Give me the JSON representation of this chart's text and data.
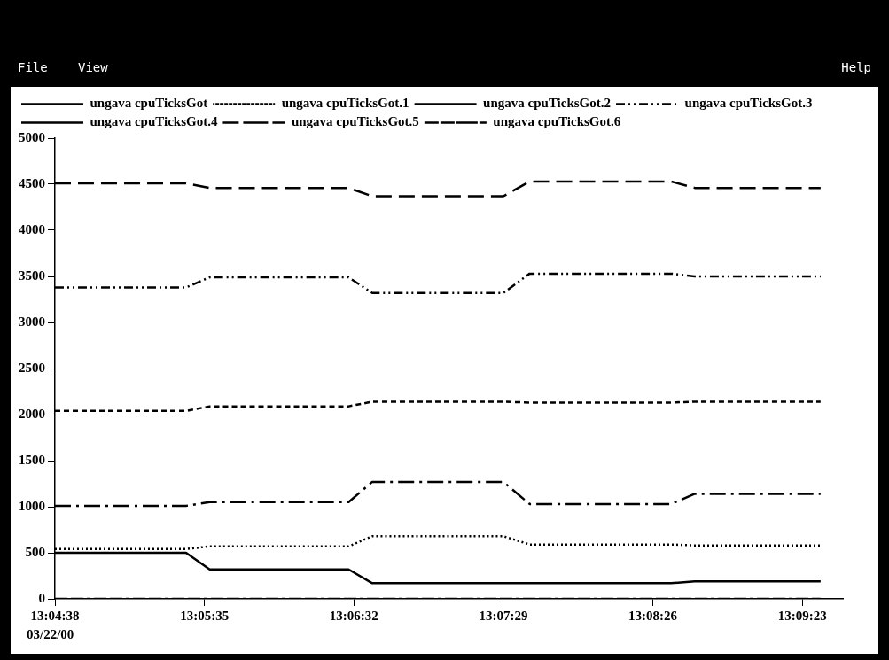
{
  "chart_data": {
    "type": "line",
    "x": [
      13.077222,
      13.091111,
      13.093611,
      13.108333,
      13.110833,
      13.124722,
      13.1275,
      13.1425,
      13.145,
      13.158333
    ],
    "series": [
      {
        "name": "ungava cpuTicksGot",
        "color": "#000000",
        "line_style": "solid",
        "values": [
          500,
          500,
          320,
          320,
          170,
          170,
          170,
          170,
          190,
          190
        ]
      },
      {
        "name": "ungava cpuTicksGot.1",
        "color": "#000000",
        "line_style": "dotted",
        "values": [
          540,
          540,
          570,
          570,
          680,
          680,
          590,
          590,
          580,
          580
        ]
      },
      {
        "name": "ungava cpuTicksGot.2",
        "color": "#000000",
        "line_style": "dashed",
        "values": [
          2040,
          2040,
          2090,
          2090,
          2140,
          2140,
          2130,
          2130,
          2140,
          2140
        ]
      },
      {
        "name": "ungava cpuTicksGot.3",
        "color": "#000000",
        "line_style": "dashdotdot",
        "values": [
          3380,
          3380,
          3490,
          3490,
          3320,
          3320,
          3530,
          3530,
          3500,
          3500
        ]
      },
      {
        "name": "ungava cpuTicksGot.4",
        "color": "#000000",
        "line_style": "longdash",
        "values": [
          4510,
          4510,
          4460,
          4460,
          4370,
          4370,
          4530,
          4530,
          4460,
          4460
        ]
      },
      {
        "name": "ungava cpuTicksGot.5",
        "color": "#000000",
        "line_style": "longdashdot",
        "values": [
          1010,
          1010,
          1050,
          1050,
          1270,
          1270,
          1030,
          1030,
          1140,
          1140
        ]
      },
      {
        "name": "ungava cpuTicksGot.6",
        "color": "#000000",
        "line_style": "dashdash",
        "values": [
          0,
          0,
          0,
          0,
          0,
          0,
          0,
          0,
          0,
          0
        ]
      }
    ],
    "xlim": [
      13.077222,
      13.160694
    ],
    "xticks": [
      {
        "value": 13.077222,
        "label": "13:04:38"
      },
      {
        "value": 13.093056,
        "label": "13:05:35"
      },
      {
        "value": 13.108889,
        "label": "13:06:32"
      },
      {
        "value": 13.124722,
        "label": "13:07:29"
      },
      {
        "value": 13.140556,
        "label": "13:08:26"
      },
      {
        "value": 13.156389,
        "label": "13:09:23"
      }
    ],
    "ylim": [
      0,
      5000
    ],
    "yticks": [
      0,
      500,
      1000,
      1500,
      2000,
      2500,
      3000,
      3500,
      4000,
      4500,
      5000
    ],
    "annotations": [
      "03/22/00",
      "File",
      "View",
      "Help"
    ],
    "grid": false,
    "legend": "top",
    "marker": "none"
  }
}
